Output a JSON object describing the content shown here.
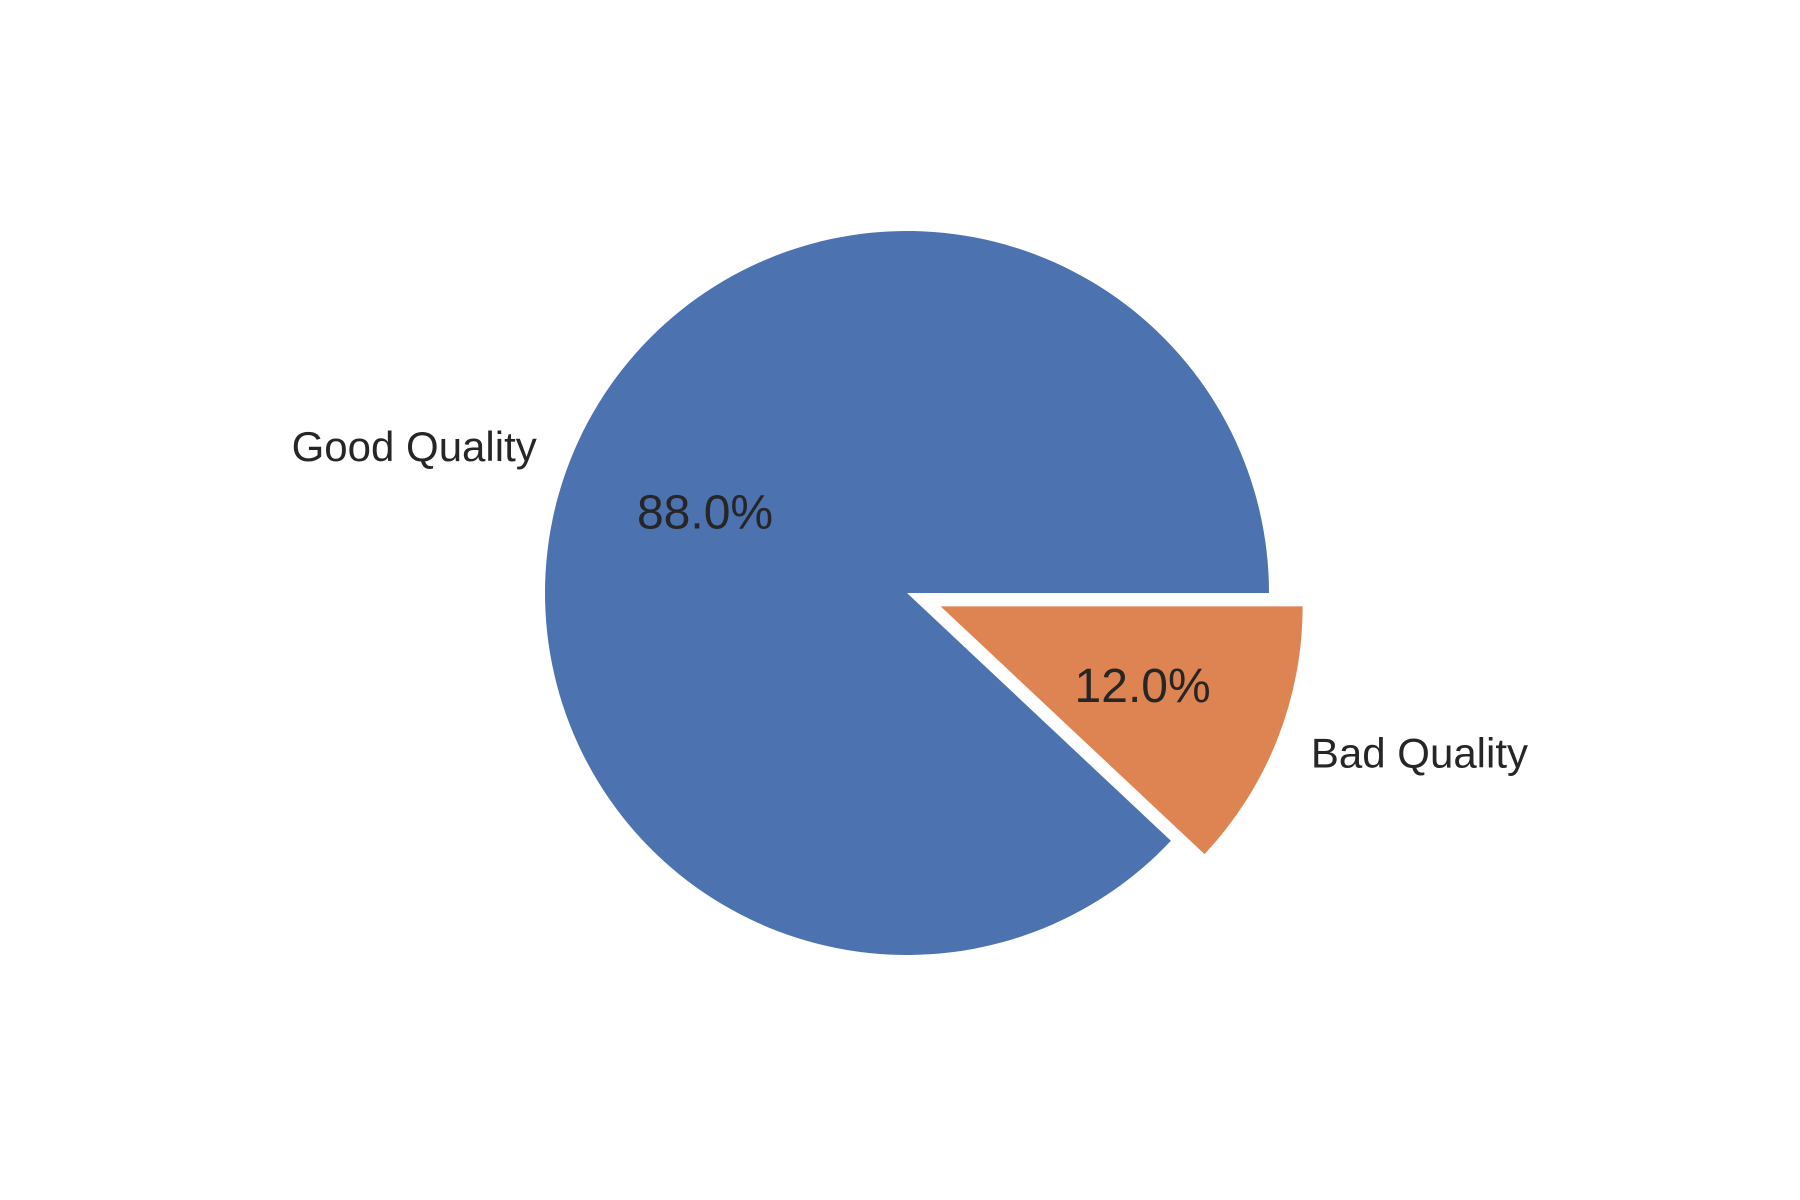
{
  "chart_data": {
    "type": "pie",
    "title": "",
    "labels": [
      "Good Quality",
      "Bad Quality"
    ],
    "values": [
      88.0,
      12.0
    ],
    "value_labels": [
      "88.0%",
      "12.0%"
    ],
    "colors": [
      "#4C72B0",
      "#DD8452"
    ],
    "exploded": [
      false,
      true
    ],
    "start_angle_deg": 0,
    "direction": "counterclockwise",
    "legend": "none"
  }
}
